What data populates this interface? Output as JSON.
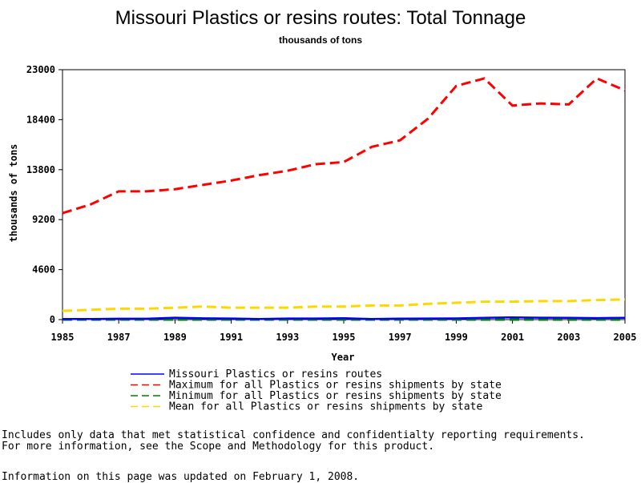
{
  "chart_data": {
    "type": "line",
    "title": "Missouri Plastics or resins routes: Total Tonnage",
    "subtitle": "thousands of tons",
    "xlabel": "Year",
    "ylabel": "thousands of tons",
    "xlim": [
      1985,
      2005
    ],
    "ylim": [
      0,
      23000
    ],
    "x_ticks": [
      "1985",
      "1987",
      "1989",
      "1991",
      "1993",
      "1995",
      "1997",
      "1999",
      "2001",
      "2003",
      "2005"
    ],
    "y_ticks": [
      "0",
      "4600",
      "9200",
      "13800",
      "18400",
      "23000"
    ],
    "x": [
      1985,
      1986,
      1987,
      1988,
      1989,
      1990,
      1991,
      1992,
      1993,
      1994,
      1995,
      1996,
      1997,
      1998,
      1999,
      2000,
      2001,
      2002,
      2003,
      2004,
      2005
    ],
    "series": [
      {
        "name": "Missouri Plastics or resins routes",
        "color": "#0000ff",
        "dash": "solid",
        "values": [
          50,
          50,
          80,
          80,
          180,
          120,
          100,
          60,
          100,
          100,
          130,
          60,
          90,
          100,
          110,
          170,
          210,
          180,
          170,
          140,
          170
        ]
      },
      {
        "name": "Maximum for all Plastics or resins shipments by state",
        "color": "#ff0000",
        "dash": "dashed",
        "values": [
          9800,
          10600,
          11800,
          11800,
          12000,
          12400,
          12800,
          13300,
          13700,
          14300,
          14500,
          15900,
          16500,
          18500,
          21500,
          22200,
          19700,
          19900,
          19800,
          22200,
          21100
        ]
      },
      {
        "name": "Minimum for all Plastics or resins shipments by state",
        "color": "#008000",
        "dash": "dashed",
        "values": [
          0,
          0,
          0,
          0,
          0,
          0,
          0,
          0,
          0,
          0,
          0,
          0,
          0,
          0,
          0,
          0,
          0,
          0,
          0,
          0,
          0
        ]
      },
      {
        "name": "Mean for all Plastics or resins shipments by state",
        "color": "#ffd700",
        "dash": "dashed",
        "values": [
          800,
          900,
          1000,
          1000,
          1100,
          1200,
          1100,
          1100,
          1100,
          1200,
          1200,
          1300,
          1300,
          1450,
          1550,
          1650,
          1650,
          1700,
          1700,
          1800,
          1850
        ]
      }
    ],
    "legend": "bottom",
    "grid": false
  },
  "notes": {
    "line1": "Includes only data that met statistical confidence and confidentialty reporting requirements.",
    "line2": "For more information, see the Scope and Methodology for this product.",
    "updated": "Information on this page was updated on February 1, 2008."
  }
}
